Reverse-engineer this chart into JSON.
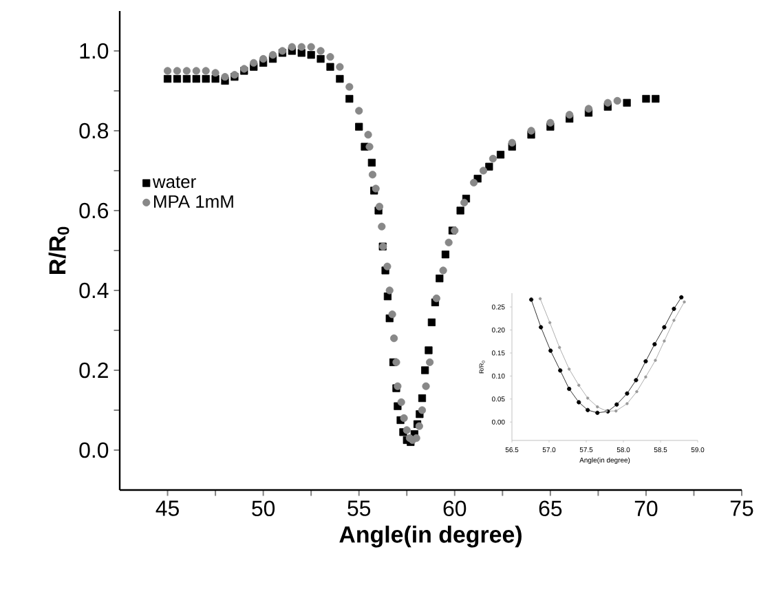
{
  "chart_data": [
    {
      "type": "scatter",
      "xlabel": "Angle(in degree)",
      "ylabel": "R/R$_{0}$",
      "xlim": [
        42.5,
        75
      ],
      "ylim": [
        -0.1,
        1.1
      ],
      "xticks": [
        45,
        {
          "value": 47.5,
          "label": null
        },
        50,
        {
          "value": 52.5,
          "label": null
        },
        55,
        {
          "value": 57.5,
          "label": null
        },
        60,
        {
          "value": 62.5,
          "label": null
        },
        65,
        {
          "value": 67.5,
          "label": null
        },
        70,
        {
          "value": 72.5,
          "label": null
        },
        75
      ],
      "yticks": [
        {
          "value": 0,
          "label": "0.0"
        },
        {
          "value": 0.1,
          "label": null
        },
        {
          "value": 0.2,
          "label": "0.2"
        },
        {
          "value": 0.3,
          "label": null
        },
        {
          "value": 0.4,
          "label": "0.4"
        },
        {
          "value": 0.5,
          "label": null
        },
        {
          "value": 0.6,
          "label": "0.6"
        },
        {
          "value": 0.7,
          "label": null
        },
        {
          "value": 0.8,
          "label": "0.8"
        },
        {
          "value": 0.9,
          "label": null
        },
        {
          "value": 1.0,
          "label": "1.0"
        }
      ],
      "legend": "left",
      "series": [
        {
          "name": "water",
          "color": "#000000",
          "marker": "square",
          "x": [
            45,
            45.5,
            46,
            46.5,
            47,
            47.5,
            48,
            48.5,
            49,
            49.5,
            50,
            50.5,
            51,
            51.5,
            52,
            52.5,
            53,
            53.5,
            54,
            54.5,
            55,
            55.3,
            55.67,
            55.79,
            56.02,
            56.24,
            56.38,
            56.5,
            56.6,
            56.79,
            56.95,
            57.02,
            57.17,
            57.31,
            57.5,
            57.7,
            57.9,
            58.05,
            58.17,
            58.3,
            58.45,
            58.64,
            58.8,
            58.98,
            59.21,
            59.52,
            59.88,
            60.3,
            60.6,
            61.2,
            61.8,
            62.4,
            63,
            64,
            65,
            66,
            67,
            68,
            69,
            70,
            70.5
          ],
          "values": [
            0.93,
            0.93,
            0.93,
            0.93,
            0.93,
            0.93,
            0.925,
            0.935,
            0.95,
            0.96,
            0.97,
            0.98,
            0.995,
            1.0,
            0.995,
            0.99,
            0.98,
            0.96,
            0.93,
            0.88,
            0.81,
            0.76,
            0.72,
            0.65,
            0.6,
            0.51,
            0.45,
            0.385,
            0.33,
            0.22,
            0.155,
            0.11,
            0.075,
            0.045,
            0.025,
            0.02,
            0.04,
            0.065,
            0.09,
            0.13,
            0.2,
            0.25,
            0.32,
            0.37,
            0.43,
            0.49,
            0.55,
            0.6,
            0.63,
            0.68,
            0.71,
            0.74,
            0.76,
            0.79,
            0.81,
            0.83,
            0.845,
            0.86,
            0.87,
            0.88,
            0.88
          ]
        },
        {
          "name": "MPA   1mM",
          "color": "#888888",
          "marker": "circle",
          "x": [
            45,
            45.5,
            46,
            46.5,
            47,
            47.5,
            48,
            48.5,
            49,
            49.5,
            50,
            50.5,
            51,
            51.5,
            52,
            52.5,
            53,
            53.5,
            54,
            54.5,
            55,
            55.48,
            55.55,
            55.71,
            55.88,
            56.07,
            56.19,
            56.26,
            56.48,
            56.6,
            56.74,
            56.83,
            56.95,
            57.02,
            57.21,
            57.35,
            57.5,
            57.65,
            57.8,
            58.0,
            58.15,
            58.3,
            58.5,
            58.7,
            59.05,
            59.4,
            59.69,
            60,
            60.5,
            61,
            61.5,
            62,
            63,
            64,
            65,
            66,
            67,
            68,
            68.5
          ],
          "values": [
            0.95,
            0.95,
            0.95,
            0.95,
            0.95,
            0.945,
            0.935,
            0.94,
            0.955,
            0.97,
            0.98,
            0.99,
            1.0,
            1.01,
            1.01,
            1.01,
            1.0,
            0.985,
            0.96,
            0.91,
            0.85,
            0.79,
            0.76,
            0.69,
            0.655,
            0.61,
            0.56,
            0.51,
            0.46,
            0.4,
            0.34,
            0.28,
            0.22,
            0.16,
            0.12,
            0.08,
            0.05,
            0.03,
            0.025,
            0.03,
            0.06,
            0.1,
            0.16,
            0.22,
            0.38,
            0.45,
            0.52,
            0.55,
            0.62,
            0.67,
            0.7,
            0.73,
            0.77,
            0.8,
            0.82,
            0.84,
            0.855,
            0.87,
            0.875
          ]
        }
      ]
    },
    {
      "type": "line",
      "xlabel": "Angle(in degree)",
      "ylabel": "R/R$_{0}$",
      "xlim": [
        56.5,
        59.0
      ],
      "ylim": [
        -0.04,
        0.28
      ],
      "marker": "circle",
      "xticks": [
        {
          "value": 56.5,
          "label": "56.5"
        },
        {
          "value": 57.0,
          "label": "57.0"
        },
        {
          "value": 57.5,
          "label": "57.5"
        },
        {
          "value": 58.0,
          "label": "58.0"
        },
        {
          "value": 58.5,
          "label": "58.5"
        },
        {
          "value": 59.0,
          "label": "59.0"
        }
      ],
      "yticks": [
        {
          "value": 0,
          "label": "0.00"
        },
        {
          "value": 0.05,
          "label": "0.05"
        },
        {
          "value": 0.1,
          "label": "0.10"
        },
        {
          "value": 0.15,
          "label": "0.15"
        },
        {
          "value": 0.2,
          "label": "0.20"
        },
        {
          "value": 0.25,
          "label": "0.25"
        }
      ],
      "series": [
        {
          "color": "#000000",
          "x": [
            56.76,
            56.89,
            57.02,
            57.15,
            57.27,
            57.4,
            57.52,
            57.65,
            57.79,
            57.91,
            58.05,
            58.17,
            58.3,
            58.42,
            58.55,
            58.68,
            58.78
          ],
          "values": [
            0.266,
            0.206,
            0.155,
            0.112,
            0.072,
            0.043,
            0.026,
            0.02,
            0.023,
            0.038,
            0.062,
            0.091,
            0.132,
            0.169,
            0.206,
            0.246,
            0.271
          ]
        },
        {
          "color": "#999999",
          "x": [
            56.88,
            57.01,
            57.14,
            57.27,
            57.4,
            57.52,
            57.65,
            57.77,
            57.9,
            58.05,
            58.18,
            58.3,
            58.43,
            58.55,
            58.68,
            58.82
          ],
          "values": [
            0.268,
            0.216,
            0.162,
            0.115,
            0.08,
            0.052,
            0.033,
            0.024,
            0.024,
            0.04,
            0.066,
            0.098,
            0.134,
            0.176,
            0.221,
            0.261
          ]
        }
      ]
    }
  ]
}
